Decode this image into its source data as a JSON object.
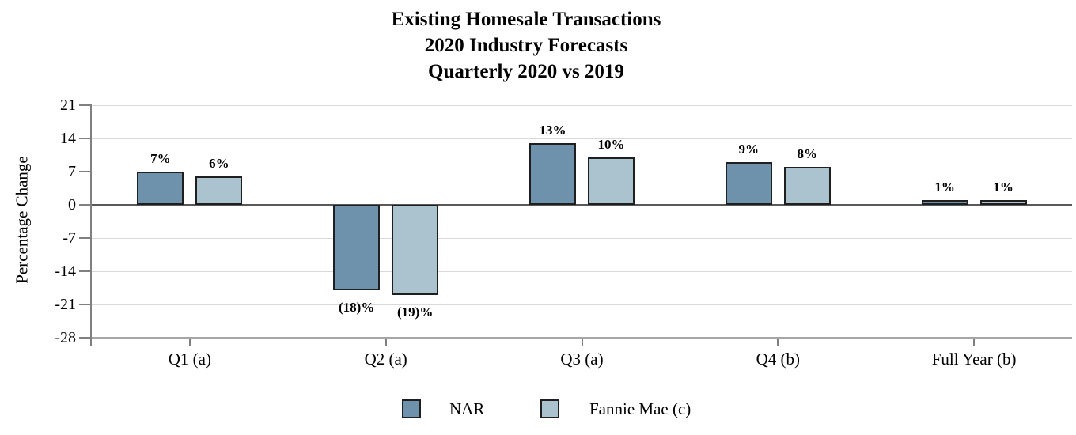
{
  "title": {
    "lines": [
      "Existing Homesale Transactions",
      "2020 Industry Forecasts",
      "Quarterly 2020 vs 2019"
    ]
  },
  "chart_data": {
    "type": "bar",
    "categories": [
      "Q1 (a)",
      "Q2 (a)",
      "Q3 (a)",
      "Q4 (b)",
      "Full Year (b)"
    ],
    "series": [
      {
        "name": "NAR",
        "color": "#6e92ac",
        "values": [
          7,
          -18,
          13,
          9,
          1
        ],
        "value_labels": [
          "7%",
          "(18)%",
          "13%",
          "9%",
          "1%"
        ]
      },
      {
        "name": "Fannie Mae (c)",
        "color": "#abc2cf",
        "values": [
          6,
          -19,
          10,
          8,
          1
        ],
        "value_labels": [
          "6%",
          "(19)%",
          "10%",
          "8%",
          "1%"
        ]
      }
    ],
    "xlabel": "",
    "ylabel": "Percentage Change",
    "yticks": [
      21,
      14,
      7,
      0,
      -7,
      -14,
      -21,
      -28
    ],
    "ylim": [
      -28,
      21
    ],
    "grid": true,
    "legend_position": "bottom",
    "legend": [
      "NAR",
      "Fannie Mae (c)"
    ],
    "colors": {
      "bar_border": "#1f1f1f",
      "gridline": "#d9d9d9",
      "zero_line": "#595959",
      "baseline": "#a6a6a6",
      "axis": "#808080"
    }
  }
}
